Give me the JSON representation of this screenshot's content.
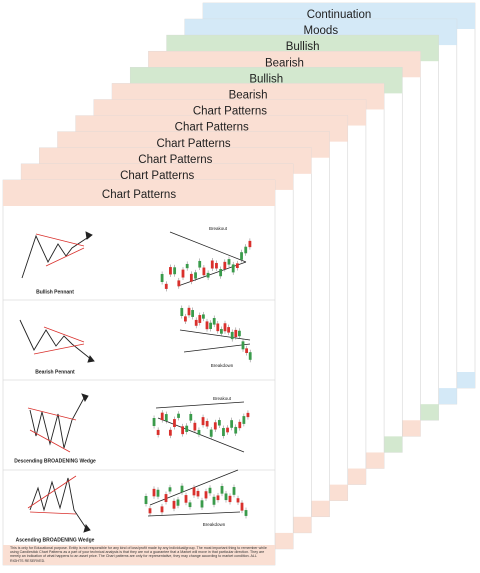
{
  "cards": [
    {
      "title": "Continuation",
      "color": "#d4e9f7"
    },
    {
      "title": "Moods",
      "color": "#d4e9f7"
    },
    {
      "title": "Bullish",
      "color": "#d3e8cf"
    },
    {
      "title": "Bearish",
      "color": "#fadfd3"
    },
    {
      "title": "Bullish",
      "color": "#d3e8cf"
    },
    {
      "title": "Bearish",
      "color": "#fadfd3"
    },
    {
      "title": "Chart Patterns",
      "color": "#fadfd3"
    },
    {
      "title": "Chart Patterns",
      "color": "#fadfd3"
    },
    {
      "title": "Chart Patterns",
      "color": "#fadfd3"
    },
    {
      "title": "Chart Patterns",
      "color": "#fadfd3"
    },
    {
      "title": "Chart Patterns",
      "color": "#fadfd3"
    },
    {
      "title": "Chart Patterns",
      "color": "#fadfd3"
    }
  ],
  "front_card": {
    "patterns": [
      {
        "label": "Bullish Pennant",
        "annotation": "Breakout"
      },
      {
        "label": "Bearish Pennant",
        "annotation": "Breakdown"
      },
      {
        "label": "Descending BROADENING Wedge",
        "annotation": "Breakout"
      },
      {
        "label": "Ascending BROADENING Wedge",
        "annotation": "Breakdown"
      }
    ],
    "disclaimer": "This is only for Educational purpose. Entity is not responsible for any kind of loss/profit made by any individual/group. The most important thing to remember while using Candlestick Chart Patterns as a part of your technical analysis is that they are not a guarantee that a Market will move in that particular direction. They are merely an indication of what happens to an asset price. The Chart patterns are only for representative, they may change according to market condition. ALL RIGHTS RESERVED."
  }
}
